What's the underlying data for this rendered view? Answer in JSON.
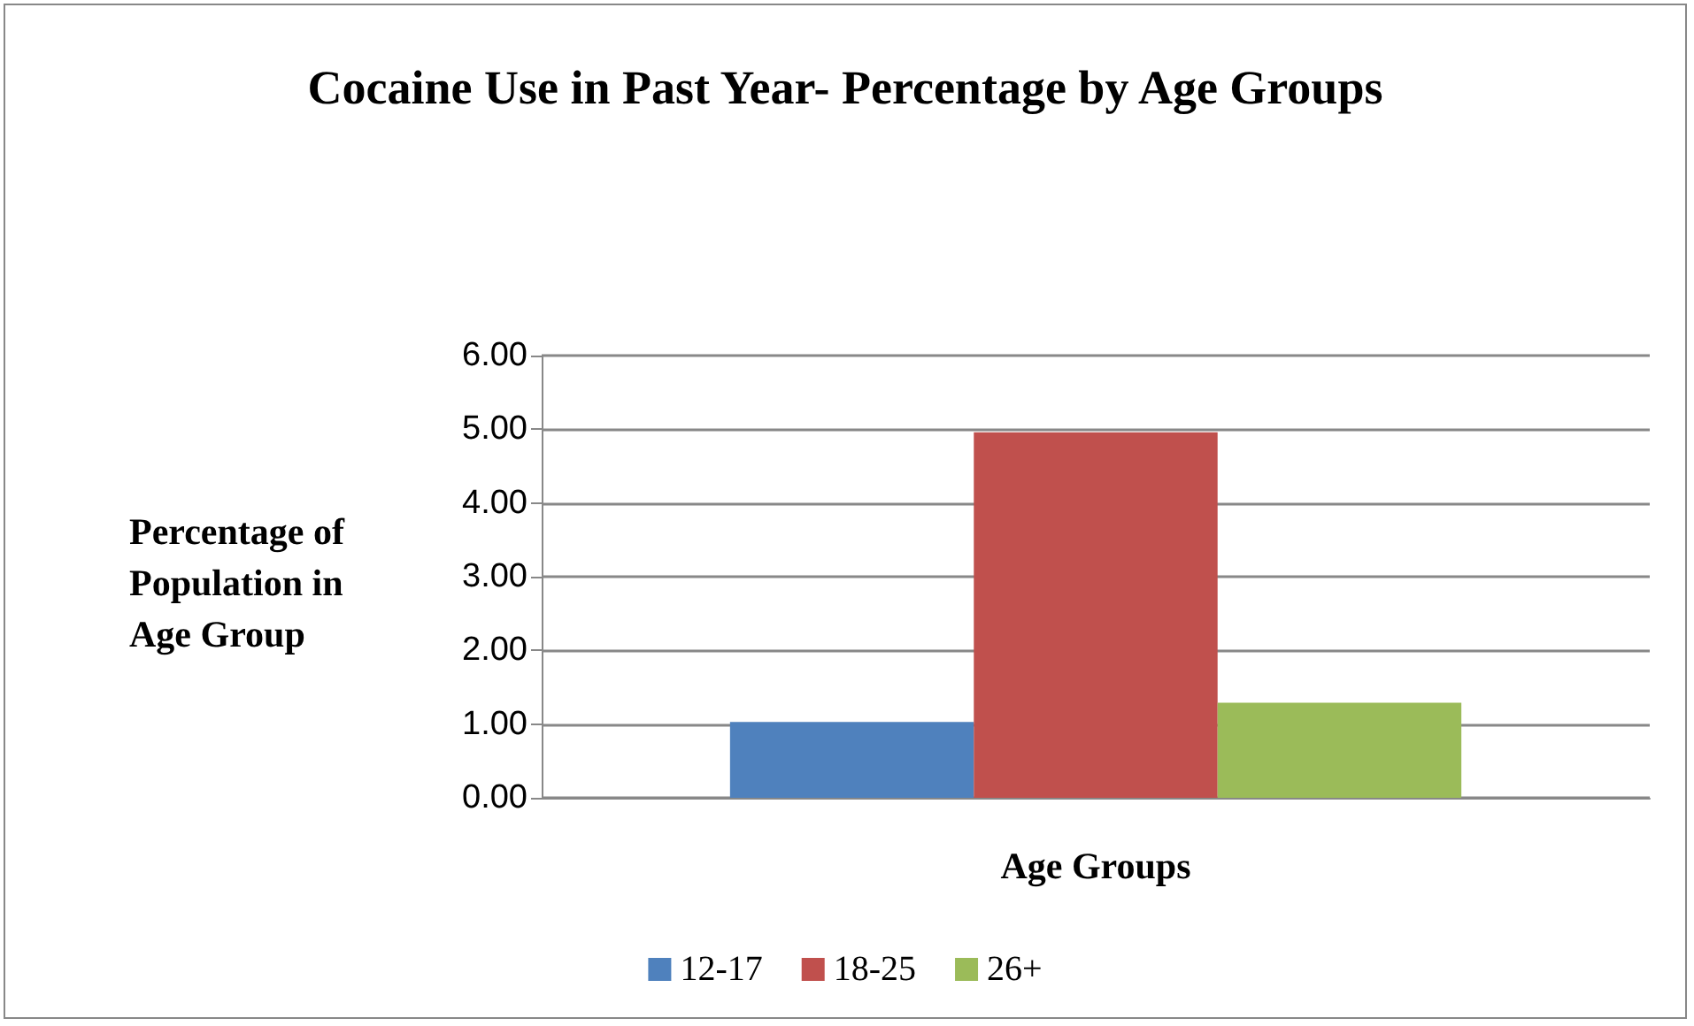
{
  "chart_data": {
    "type": "bar",
    "title": "Cocaine Use in Past Year- Percentage by Age Groups",
    "xlabel": "Age Groups",
    "ylabel": "Percentage of\nPopulation in\nAge Group",
    "categories": [
      null
    ],
    "series": [
      {
        "name": "12-17",
        "color": "#4f81bd",
        "values": [
          1.03
        ]
      },
      {
        "name": "18-25",
        "color": "#c0504d",
        "values": [
          4.96
        ]
      },
      {
        "name": "26+",
        "color": "#9bbb59",
        "values": [
          1.29
        ]
      }
    ],
    "ylim": [
      0,
      6
    ],
    "yticks": [
      {
        "value": 0,
        "label": "0.00"
      },
      {
        "value": 1,
        "label": "1.00"
      },
      {
        "value": 2,
        "label": "2.00"
      },
      {
        "value": 3,
        "label": "3.00"
      },
      {
        "value": 4,
        "label": "4.00"
      },
      {
        "value": 5,
        "label": "5.00"
      },
      {
        "value": 6,
        "label": "6.00"
      }
    ],
    "grid": "y",
    "legend": "bottom"
  }
}
